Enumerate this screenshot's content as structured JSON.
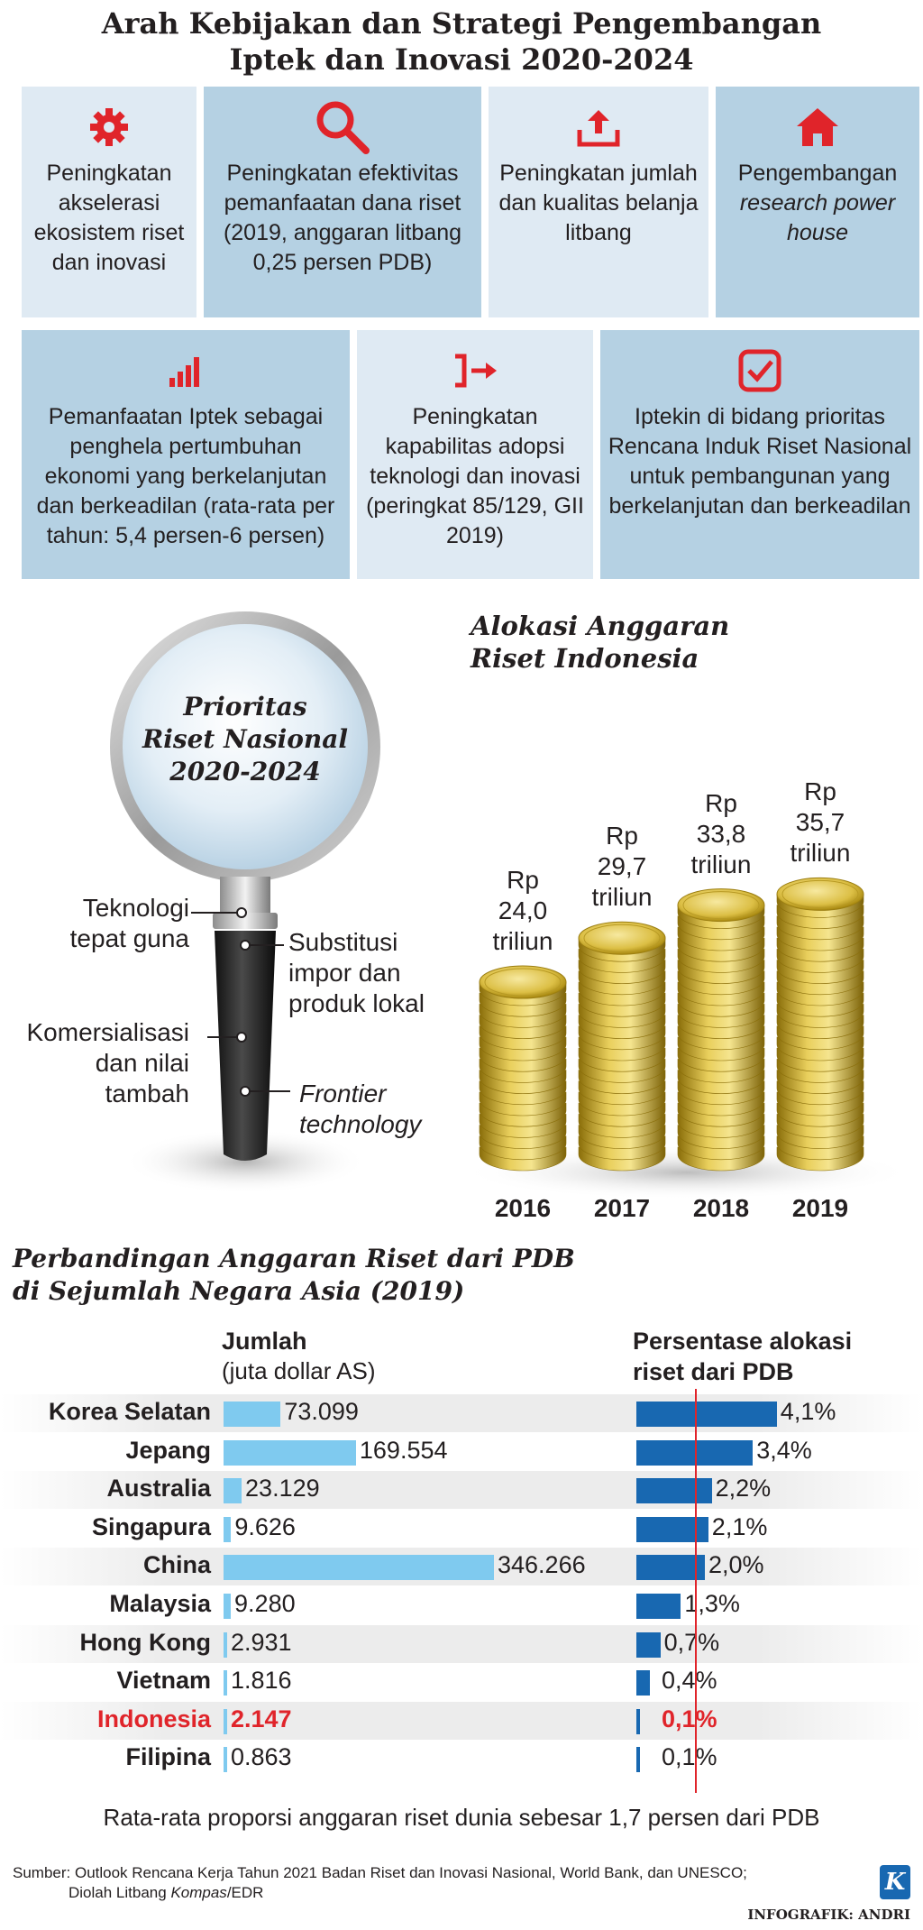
{
  "title": {
    "line1": "Arah Kebijakan dan Strategi Pengembangan",
    "line2": "Iptek dan Inovasi 2020-2024"
  },
  "policies": [
    {
      "icon": "gear-icon",
      "text": "Peningkatan akselerasi ekosistem riset dan inovasi"
    },
    {
      "icon": "magnifier-icon",
      "text": "Peningkatan efektivitas pemanfaatan dana riset (2019, anggaran litbang 0,25 persen PDB)"
    },
    {
      "icon": "upload-icon",
      "text": "Peningkatan jumlah dan kualitas belanja litbang"
    },
    {
      "icon": "house-icon",
      "text_prefix": "Pengembangan",
      "text_italic": "research power house"
    },
    {
      "icon": "bar-chart-icon",
      "text": "Pemanfaatan Iptek sebagai penghela pertumbuhan ekonomi yang berkelanjutan dan berkeadilan (rata-rata per tahun: 5,4 persen-6 persen)"
    },
    {
      "icon": "bracket-arrow-icon",
      "text": "Peningkatan kapabilitas adopsi teknologi dan inovasi (peringkat 85/129, GII 2019)"
    },
    {
      "icon": "checkbox-icon",
      "text": "Iptekin di bidang prioritas Rencana Induk Riset Nasional untuk pembangunan yang berkelanjutan dan berkeadilan"
    }
  ],
  "priorities": {
    "title1": "Prioritas",
    "title2": "Riset Nasional",
    "title3": "2020-2024",
    "items": [
      {
        "line1": "Teknologi",
        "line2": "tepat guna"
      },
      {
        "line1": "Substitusi",
        "line2": "impor dan",
        "line3": "produk lokal"
      },
      {
        "line1": "Komersialisasi",
        "line2": "dan nilai",
        "line3": "tambah"
      },
      {
        "line1": "Frontier",
        "line2": "technology"
      }
    ]
  },
  "chart_data": [
    {
      "type": "bar",
      "title": "Alokasi Anggaran Riset Indonesia",
      "title_line1": "Alokasi Anggaran",
      "title_line2": "Riset Indonesia",
      "categories": [
        "2016",
        "2017",
        "2018",
        "2019"
      ],
      "values": [
        24.0,
        29.7,
        33.8,
        35.7
      ],
      "unit": "triliun",
      "labels": [
        {
          "pre": "Rp",
          "num": "24,0",
          "unit": "triliun"
        },
        {
          "pre": "Rp",
          "num": "29,7",
          "unit": "triliun"
        },
        {
          "pre": "Rp",
          "num": "33,8",
          "unit": "triliun"
        },
        {
          "pre": "Rp",
          "num": "35,7",
          "unit": "triliun"
        }
      ]
    },
    {
      "type": "bar",
      "title_line1": "Perbandingan Anggaran Riset dari PDB",
      "title_line2": "di Sejumlah Negara Asia (2019)",
      "col1_head": "Jumlah",
      "col1_sub": "(juta dollar AS)",
      "col2_head1": "Persentase alokasi",
      "col2_head2": "riset dari PDB",
      "categories": [
        "Korea Selatan",
        "Jepang",
        "Australia",
        "Singapura",
        "China",
        "Malaysia",
        "Hong Kong",
        "Vietnam",
        "Indonesia",
        "Filipina"
      ],
      "series": [
        {
          "name": "Jumlah",
          "values": [
            73099,
            169554,
            23129,
            9626,
            346266,
            9280,
            2931,
            1816,
            2147,
            863
          ],
          "labels": [
            "73.099",
            "169.554",
            "23.129",
            "9.626",
            "346.266",
            "9.280",
            "2.931",
            "1.816",
            "2.147",
            "0.863"
          ]
        },
        {
          "name": "Persentase alokasi riset dari PDB",
          "values": [
            4.1,
            3.4,
            2.2,
            2.1,
            2.0,
            1.3,
            0.7,
            0.4,
            0.1,
            0.1
          ],
          "labels": [
            "4,1%",
            "3,4%",
            "2,2%",
            "2,1%",
            "2,0%",
            "1,3%",
            "0,7%",
            "0,4%",
            "0,1%",
            "0,1%"
          ]
        }
      ],
      "reference_line": 1.7,
      "highlight": "Indonesia",
      "colors": {
        "jumlah": "#7fcaef",
        "persen": "#1868b1",
        "highlight": "#e0242a"
      }
    }
  ],
  "note": "Rata-rata proporsi anggaran riset dunia sebesar 1,7 persen dari PDB",
  "source": {
    "line1": "Sumber: Outlook Rencana Kerja Tahun 2021 Badan Riset dan Inovasi Nasional, World Bank, dan UNESCO;",
    "line2_prefix": "Diolah Litbang",
    "line2_italic": "Kompas",
    "line2_suffix": "/EDR"
  },
  "logo": "K",
  "credit": "INFOGRAFIK: ANDRI"
}
